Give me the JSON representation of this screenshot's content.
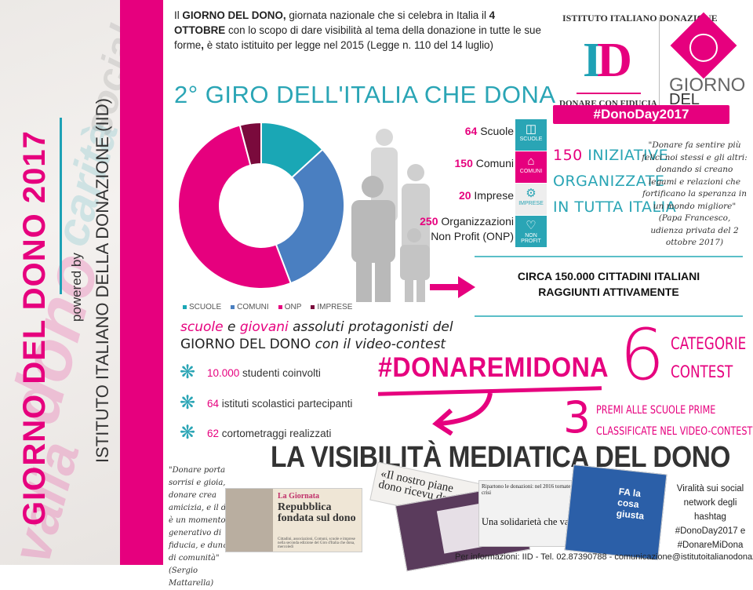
{
  "sidebar": {
    "title": "GIORNO DEL DONO 2017",
    "powered_by": "powered by",
    "institute": "ISTITUTO ITALIANO DELLA DONAZIONE (IID)"
  },
  "intro": {
    "p1": "Il ",
    "b1": "GIORNO DEL DONO,",
    "p2": " giornata nazionale che si celebra in Italia il ",
    "b2": "4 OTTOBRE",
    "p3": " con lo scopo di dare visibilità al tema della donazione in tutte le sue forme",
    "b3": ",",
    "p4": " è stato istituito per legge nel 2015 (Legge n. 110 del 14 luglio)"
  },
  "logos": {
    "iid_arc": "ISTITUTO ITALIANO DONAZIONE",
    "iid_mark_i": "I",
    "iid_mark_d": "D",
    "iid_tagline": "DONARE CON FIDUCIA",
    "gdd_line1": "GIORNO",
    "gdd_line2": "DEL DONO",
    "hashtag": "#DonoDay2017"
  },
  "subtitle": "2° GIRO DELL'ITALIA CHE DONA",
  "chart_data": {
    "type": "pie",
    "variant": "donut",
    "categories": [
      "SCUOLE",
      "COMUNI",
      "ONP",
      "IMPRESE"
    ],
    "values": [
      64,
      150,
      250,
      20
    ],
    "colors": [
      "#1aa7b5",
      "#4a7fc1",
      "#e6007e",
      "#7a0a3c"
    ],
    "legend_position": "bottom"
  },
  "stats": [
    {
      "num": "64",
      "label": "Scuole",
      "icon": "book-icon",
      "icon_caption": "SCUOLE",
      "color": "#2aa5b5"
    },
    {
      "num": "150",
      "label": "Comuni",
      "icon": "town-hall-icon",
      "icon_caption": "COMUNI",
      "color": "#e6007e"
    },
    {
      "num": "20",
      "label": "Imprese",
      "icon": "gears-icon",
      "icon_caption": "IMPRESE",
      "color": "#eeeeee"
    },
    {
      "num": "250",
      "label": "Organizzazioni",
      "label2": "Non Profit (ONP)",
      "icon": "heart-icon",
      "icon_caption": "NON PROFIT",
      "color": "#2aa5b5"
    }
  ],
  "iniziative": {
    "num": "150",
    "line1": " INIZIATIVE",
    "line2": "ORGANIZZATE",
    "line3": "IN TUTTA ITALIA"
  },
  "quote_pope": {
    "text": "\"Donare fa sentire più felici noi stessi e gli altri: donando si creano legami e relazioni che fortificano la speranza in un mondo migliore\"",
    "author": "(Papa Francesco, udienza privata del 2 ottobre 2017)"
  },
  "reach": {
    "line1": "CIRCA 150.000 CITTADINI ITALIANI",
    "line2": "RAGGIUNTI ATTIVAMENTE"
  },
  "contest_intro": {
    "w1": "scuole",
    "w2": " e ",
    "w3": "giovani",
    "w4": " assoluti protagonisti del",
    "w5": "GIORNO DEL DONO",
    "w6": " con il video-contest"
  },
  "bullets": [
    {
      "num": "10.000",
      "text": " studenti coinvolti"
    },
    {
      "num": "64",
      "text": " istituti scolastici partecipanti"
    },
    {
      "num": "62",
      "text": " cortometraggi realizzati"
    }
  ],
  "contest": {
    "hashtag": "#DONAREMIDONA",
    "categories_num": "6",
    "categories_l1": "CATEGORIE",
    "categories_l2": "CONTEST",
    "prizes_num": "3",
    "prizes_l1": "PREMI ALLE SCUOLE PRIME",
    "prizes_l2": "CLASSIFICATE NEL VIDEO-CONTEST"
  },
  "media": {
    "title": "LA VISIBILITÀ MEDIATICA DEL DONO",
    "quote": "\"Donare porta sorrisi e gioia, donare crea amicizia, e il dono è un momento generativo di fiducia, e dunque di comunità\"",
    "quote_author": "(Sergio Mattarella)",
    "clip1_kicker": "La Giornata",
    "clip1_headline": "Repubblica fondata sul dono",
    "clip1_body": "Cittadini, associazioni, Comuni, scuole e imprese nella seconda edizione del Giro d'Italia che dona, mercoledì",
    "clip2_headline": "«Il nostro piane dono ricevu da con",
    "clip3_headline": "Ripartono le donazioni: nel 2016 tornate ai livelli pre-crisi",
    "clip4_headline": "Una solidarietà che va oltre le emergenze",
    "clip5_caption": "FA la cosa giusta",
    "virality": "Viralità sui social network degli hashtag #DonoDay2017 e #DonareMiDona"
  },
  "footer": "Per informazioni: IID - Tel. 02.87390788 - comunicazione@istitutoitalianodonazione.it"
}
